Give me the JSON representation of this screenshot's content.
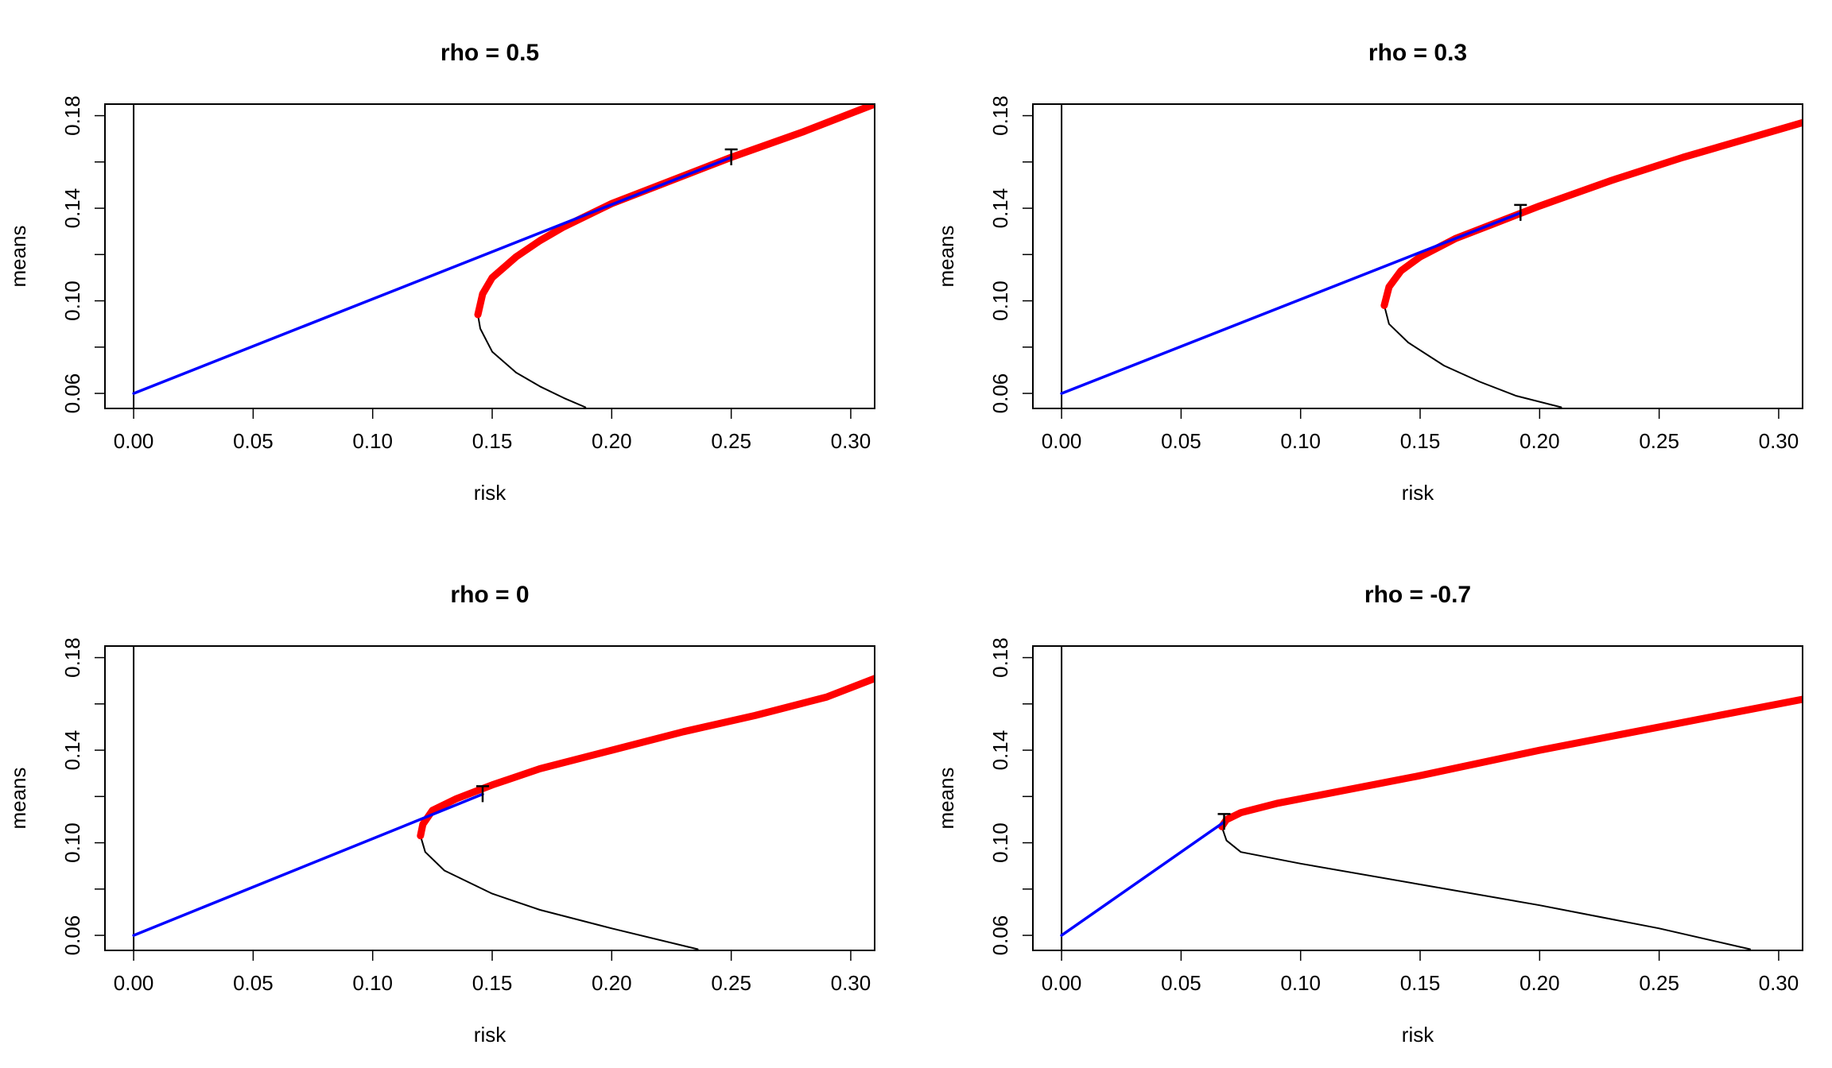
{
  "chart_data": [
    {
      "type": "line",
      "title": "rho =  0.5",
      "xlabel": "risk",
      "ylabel": "means",
      "xlim": [
        -0.012,
        0.31
      ],
      "ylim": [
        0.0535,
        0.185
      ],
      "xticks": [
        "0.00",
        "0.05",
        "0.10",
        "0.15",
        "0.20",
        "0.25",
        "0.30"
      ],
      "yticks": [
        "0.06",
        "0.10",
        "0.14",
        "0.18"
      ],
      "rho": 0.5,
      "min_variance_point": [
        0.144,
        0.094
      ],
      "tangency_point": [
        0.25,
        0.162
      ],
      "risk_free_rate": 0.06,
      "series": [
        {
          "role": "inefficient frontier",
          "color": "#000000",
          "x": [
            0.144,
            0.145,
            0.15,
            0.16,
            0.17,
            0.18,
            0.189
          ],
          "y": [
            0.094,
            0.088,
            0.078,
            0.069,
            0.063,
            0.058,
            0.054
          ]
        },
        {
          "role": "efficient frontier",
          "color": "#ff0000",
          "x": [
            0.144,
            0.146,
            0.15,
            0.16,
            0.17,
            0.18,
            0.2,
            0.22,
            0.25,
            0.28,
            0.31
          ],
          "y": [
            0.094,
            0.103,
            0.11,
            0.119,
            0.126,
            0.132,
            0.142,
            0.15,
            0.162,
            0.173,
            0.185
          ]
        },
        {
          "role": "capital market line",
          "color": "#0000ff",
          "x": [
            0.0,
            0.25
          ],
          "y": [
            0.06,
            0.162
          ]
        }
      ]
    },
    {
      "type": "line",
      "title": "rho =  0.3",
      "xlabel": "risk",
      "ylabel": "means",
      "xlim": [
        -0.012,
        0.31
      ],
      "ylim": [
        0.0535,
        0.185
      ],
      "xticks": [
        "0.00",
        "0.05",
        "0.10",
        "0.15",
        "0.20",
        "0.25",
        "0.30"
      ],
      "yticks": [
        "0.06",
        "0.10",
        "0.14",
        "0.18"
      ],
      "rho": 0.3,
      "min_variance_point": [
        0.135,
        0.098
      ],
      "tangency_point": [
        0.192,
        0.138
      ],
      "risk_free_rate": 0.06,
      "series": [
        {
          "role": "inefficient frontier",
          "color": "#000000",
          "x": [
            0.135,
            0.137,
            0.145,
            0.16,
            0.175,
            0.19,
            0.209
          ],
          "y": [
            0.098,
            0.09,
            0.082,
            0.072,
            0.065,
            0.059,
            0.054
          ]
        },
        {
          "role": "efficient frontier",
          "color": "#ff0000",
          "x": [
            0.135,
            0.137,
            0.142,
            0.15,
            0.165,
            0.18,
            0.2,
            0.23,
            0.26,
            0.29,
            0.31
          ],
          "y": [
            0.098,
            0.106,
            0.113,
            0.119,
            0.127,
            0.133,
            0.141,
            0.152,
            0.162,
            0.171,
            0.177
          ]
        },
        {
          "role": "capital market line",
          "color": "#0000ff",
          "x": [
            0.0,
            0.192
          ],
          "y": [
            0.06,
            0.138
          ]
        }
      ]
    },
    {
      "type": "line",
      "title": "rho =  0",
      "xlabel": "risk",
      "ylabel": "means",
      "xlim": [
        -0.012,
        0.31
      ],
      "ylim": [
        0.0535,
        0.185
      ],
      "xticks": [
        "0.00",
        "0.05",
        "0.10",
        "0.15",
        "0.20",
        "0.25",
        "0.30"
      ],
      "yticks": [
        "0.06",
        "0.10",
        "0.14",
        "0.18"
      ],
      "rho": 0.0,
      "min_variance_point": [
        0.12,
        0.103
      ],
      "tangency_point": [
        0.146,
        0.121
      ],
      "risk_free_rate": 0.06,
      "series": [
        {
          "role": "inefficient frontier",
          "color": "#000000",
          "x": [
            0.12,
            0.122,
            0.13,
            0.15,
            0.17,
            0.2,
            0.236
          ],
          "y": [
            0.103,
            0.096,
            0.088,
            0.078,
            0.071,
            0.063,
            0.054
          ]
        },
        {
          "role": "efficient frontier",
          "color": "#ff0000",
          "x": [
            0.12,
            0.121,
            0.125,
            0.135,
            0.15,
            0.17,
            0.2,
            0.23,
            0.26,
            0.29,
            0.31
          ],
          "y": [
            0.103,
            0.108,
            0.114,
            0.119,
            0.125,
            0.132,
            0.14,
            0.148,
            0.155,
            0.163,
            0.171
          ]
        },
        {
          "role": "capital market line",
          "color": "#0000ff",
          "x": [
            0.0,
            0.146
          ],
          "y": [
            0.06,
            0.121
          ]
        }
      ]
    },
    {
      "type": "line",
      "title": "rho =  -0.7",
      "xlabel": "risk",
      "ylabel": "means",
      "xlim": [
        -0.012,
        0.31
      ],
      "ylim": [
        0.0535,
        0.185
      ],
      "xticks": [
        "0.00",
        "0.05",
        "0.10",
        "0.15",
        "0.20",
        "0.25",
        "0.30"
      ],
      "yticks": [
        "0.06",
        "0.10",
        "0.14",
        "0.18"
      ],
      "rho": -0.7,
      "min_variance_point": [
        0.067,
        0.107
      ],
      "tangency_point": [
        0.068,
        0.109
      ],
      "risk_free_rate": 0.06,
      "series": [
        {
          "role": "inefficient frontier",
          "color": "#000000",
          "x": [
            0.067,
            0.069,
            0.075,
            0.1,
            0.15,
            0.2,
            0.25,
            0.288
          ],
          "y": [
            0.107,
            0.101,
            0.096,
            0.091,
            0.082,
            0.073,
            0.063,
            0.054
          ]
        },
        {
          "role": "efficient frontier",
          "color": "#ff0000",
          "x": [
            0.067,
            0.069,
            0.075,
            0.09,
            0.11,
            0.15,
            0.2,
            0.25,
            0.31
          ],
          "y": [
            0.107,
            0.11,
            0.113,
            0.117,
            0.121,
            0.129,
            0.14,
            0.15,
            0.162
          ]
        },
        {
          "role": "capital market line",
          "color": "#0000ff",
          "x": [
            0.0,
            0.068
          ],
          "y": [
            0.06,
            0.109
          ]
        }
      ]
    }
  ]
}
